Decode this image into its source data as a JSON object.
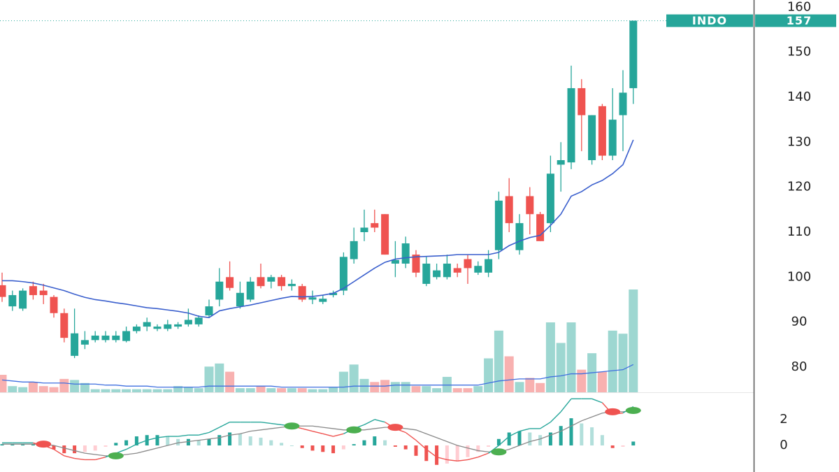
{
  "chart_data": {
    "type": "candlestick",
    "symbol": "INDO",
    "up_color": "#26a69a",
    "down_color": "#ef5350",
    "open": [
      98.2,
      93.5,
      93,
      98,
      97,
      95.6,
      92,
      82.5,
      85,
      86,
      86,
      86,
      85.8,
      88,
      89,
      88.5,
      88.5,
      89,
      89.5,
      89.5,
      91.5,
      95,
      100,
      93.5,
      95,
      100,
      99,
      100,
      98,
      98,
      95,
      94.5,
      96,
      97,
      104,
      110,
      112,
      114,
      103,
      103,
      105,
      98.5,
      100,
      100,
      102,
      104,
      101,
      101,
      106,
      118,
      106,
      118,
      114,
      112,
      125,
      125.5,
      142,
      126,
      138,
      127,
      136,
      142
    ],
    "high": [
      101,
      97,
      97.5,
      99,
      98.5,
      96,
      93,
      93,
      88,
      88,
      88,
      88,
      89,
      89.5,
      91,
      89.5,
      90.5,
      90,
      93,
      91.5,
      95,
      102,
      103.5,
      99,
      100,
      103,
      100.5,
      100.5,
      99.5,
      98.5,
      97,
      96,
      97,
      105.5,
      111,
      115,
      115,
      114,
      108,
      109,
      106,
      104.5,
      103,
      105,
      103,
      105,
      103.5,
      106,
      119,
      122,
      114,
      120,
      114.5,
      127,
      130,
      147,
      144,
      136,
      138.5,
      142,
      146,
      157
    ],
    "low": [
      94.5,
      92.5,
      92.5,
      95,
      94,
      91,
      85.5,
      82,
      84,
      85.5,
      85.5,
      85.5,
      85.5,
      87.5,
      88,
      88,
      88,
      88.5,
      89,
      89,
      91,
      93.5,
      97,
      93,
      94.5,
      97.5,
      97.5,
      97,
      97,
      94.5,
      94,
      94,
      95.5,
      96,
      103,
      108,
      110,
      105,
      100,
      102,
      100,
      98,
      99.5,
      99.5,
      100,
      98.5,
      100.5,
      100,
      104,
      110,
      105,
      109.5,
      108,
      110,
      119,
      124,
      128,
      125,
      126,
      126,
      128,
      138.5
    ],
    "close": [
      95.6,
      96,
      97,
      96,
      96,
      92,
      86.5,
      87.5,
      86,
      87,
      87,
      87,
      88,
      89,
      90,
      89,
      89.5,
      89.5,
      90.5,
      91,
      93.5,
      99,
      97.6,
      96.5,
      99,
      98,
      100,
      98,
      98.5,
      95,
      95.5,
      95.2,
      96.5,
      104.5,
      108,
      111,
      111,
      105,
      103.8,
      107.5,
      101,
      103,
      101.5,
      103,
      101,
      102,
      102.5,
      104,
      117,
      112,
      112,
      114,
      108,
      123,
      126,
      142,
      136,
      136,
      127,
      135,
      141,
      157
    ],
    "ma": {
      "color": "#3a5fcd",
      "values": [
        99.2,
        99.2,
        99,
        98.7,
        98.2,
        97.6,
        97,
        96.2,
        95.5,
        95,
        94.7,
        94.3,
        94,
        93.6,
        93.2,
        93,
        92.7,
        92.4,
        92,
        91.3,
        91,
        92.5,
        93,
        93.4,
        93.8,
        94.3,
        94.8,
        95.3,
        95.7,
        95.6,
        95.7,
        96,
        96.4,
        97.5,
        99,
        100.5,
        102,
        103.3,
        104,
        104.3,
        104.5,
        104.6,
        104.7,
        104.8,
        105,
        105,
        105,
        105,
        105.5,
        107,
        108,
        108.8,
        109.3,
        111.5,
        114,
        118,
        119,
        120.5,
        121.5,
        123,
        125,
        130.5
      ]
    },
    "volume": {
      "values": [
        17,
        6,
        5,
        10,
        6,
        5,
        13,
        12,
        9,
        3,
        3,
        3,
        3,
        3,
        3,
        3,
        3,
        6,
        5,
        4,
        25,
        28,
        20,
        4,
        4,
        6,
        4,
        4,
        4,
        4,
        3,
        3,
        5,
        20,
        27,
        13,
        10,
        12,
        10,
        10,
        6,
        6,
        4,
        15,
        4,
        4,
        6,
        33,
        60,
        35,
        10,
        14,
        9,
        68,
        48,
        68,
        22,
        38,
        20,
        60,
        57,
        100
      ],
      "ma": [
        12,
        11,
        10,
        10,
        9,
        9,
        9,
        8,
        8,
        8,
        7,
        7,
        6,
        6,
        6,
        5,
        5,
        5,
        5,
        5,
        6,
        6,
        6,
        6,
        6,
        6,
        6,
        5,
        5,
        5,
        5,
        5,
        5,
        5,
        6,
        6,
        6,
        6,
        7,
        7,
        7,
        7,
        7,
        7,
        7,
        7,
        7,
        9,
        11,
        12,
        13,
        13,
        13,
        15,
        16,
        18,
        18,
        19,
        20,
        21,
        22,
        27
      ],
      "ma_color": "#3f6fe0"
    },
    "ylim": [
      74.4,
      161.6
    ],
    "yticks": [
      80,
      90,
      100,
      110,
      120,
      130,
      140,
      150,
      160
    ],
    "grid": false,
    "macd": {
      "macd": [
        0.2,
        0.2,
        0.2,
        0.2,
        0.0,
        -0.3,
        -0.8,
        -1,
        -1.1,
        -1.1,
        -0.9,
        -0.6,
        -0.3,
        0.1,
        0.4,
        0.6,
        0.7,
        0.7,
        0.8,
        0.8,
        1.0,
        1.4,
        1.8,
        1.8,
        1.8,
        1.8,
        1.7,
        1.6,
        1.5,
        1.3,
        1.1,
        0.9,
        0.7,
        0.9,
        1.3,
        1.6,
        2.0,
        1.8,
        1.3,
        1.0,
        0.4,
        -0.3,
        -0.9,
        -1.1,
        -1.2,
        -1.1,
        -0.9,
        -0.6,
        0,
        0.7,
        1.1,
        1.3,
        1.3,
        1.8,
        2.6,
        3.6,
        3.6,
        3.6,
        3.3,
        2.4,
        2.5,
        3.0
      ],
      "signal": [
        0.1,
        0.1,
        0.1,
        0.1,
        0.1,
        0,
        -0.2,
        -0.4,
        -0.6,
        -0.7,
        -0.8,
        -0.8,
        -0.7,
        -0.6,
        -0.4,
        -0.2,
        0,
        0.2,
        0.3,
        0.4,
        0.5,
        0.6,
        0.8,
        0.9,
        1.1,
        1.2,
        1.3,
        1.4,
        1.5,
        1.5,
        1.5,
        1.4,
        1.3,
        1.2,
        1.2,
        1.2,
        1.3,
        1.4,
        1.4,
        1.3,
        1.2,
        0.9,
        0.6,
        0.3,
        0.0,
        -0.2,
        -0.4,
        -0.5,
        -0.5,
        -0.3,
        0,
        0.3,
        0.5,
        0.8,
        1.1,
        1.5,
        1.9,
        2.2,
        2.5,
        2.6,
        2.6,
        2.7
      ],
      "histogram": [
        0.1,
        0.1,
        0.1,
        0.1,
        -0.1,
        -0.3,
        -0.6,
        -0.6,
        -0.5,
        -0.4,
        -0.1,
        0.2,
        0.4,
        0.7,
        0.8,
        0.8,
        0.7,
        0.5,
        0.5,
        0.4,
        0.5,
        0.8,
        1.0,
        0.9,
        0.7,
        0.6,
        0.4,
        0.2,
        0,
        -0.2,
        -0.4,
        -0.5,
        -0.6,
        -0.3,
        0.1,
        0.4,
        0.7,
        0.4,
        -0.1,
        -0.3,
        -0.8,
        -1.2,
        -1.5,
        -1.4,
        -1.2,
        -0.9,
        -0.5,
        -0.1,
        0.5,
        1.0,
        1.1,
        1.0,
        0.8,
        1.0,
        1.5,
        2.1,
        1.7,
        1.4,
        0.8,
        -0.2,
        -0.1,
        0.3
      ],
      "signal_color": "#8a8a8a",
      "ylim": [
        -2.05,
        4.05
      ],
      "yticks": [
        0,
        2
      ]
    }
  }
}
